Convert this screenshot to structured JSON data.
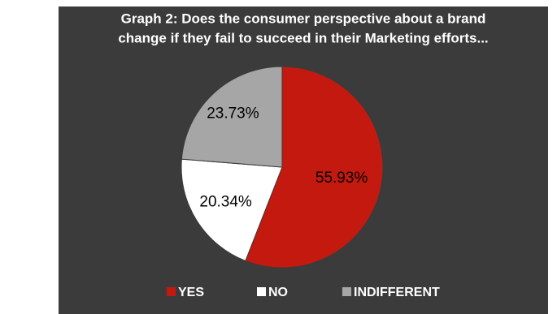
{
  "chart_data": {
    "type": "pie",
    "title": [
      "Graph 2: Does the consumer perspective about a brand",
      "change if they fail to succeed in their Marketing efforts..."
    ],
    "categories": [
      "YES",
      "NO",
      "INDIFFERENT"
    ],
    "values": [
      55.93,
      20.34,
      23.73
    ],
    "value_labels": [
      "55.93%",
      "20.34%",
      "23.73%"
    ],
    "colors": [
      "#c4190f",
      "#ffffff",
      "#a6a6a6"
    ],
    "legend": "bottom"
  }
}
